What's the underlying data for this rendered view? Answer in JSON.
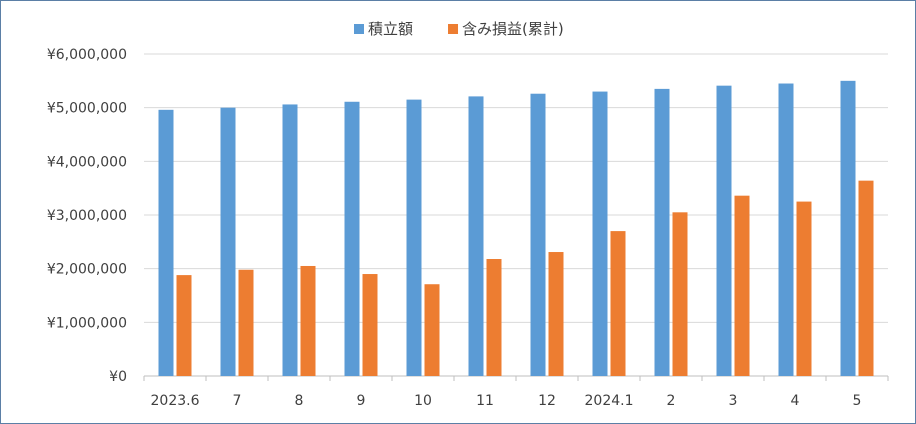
{
  "chart_data": {
    "type": "bar",
    "categories": [
      "2023.6",
      "7",
      "8",
      "9",
      "10",
      "11",
      "12",
      "2024.1",
      "2",
      "3",
      "4",
      "5"
    ],
    "series": [
      {
        "name": "積立額",
        "color": "#5b9bd5",
        "values": [
          4960000,
          5000000,
          5060000,
          5110000,
          5150000,
          5210000,
          5260000,
          5300000,
          5350000,
          5410000,
          5450000,
          5500000
        ]
      },
      {
        "name": "含み損益(累計)",
        "color": "#ed7d31",
        "values": [
          1880000,
          1980000,
          2050000,
          1900000,
          1710000,
          2180000,
          2310000,
          2700000,
          3050000,
          3360000,
          3250000,
          3640000
        ]
      }
    ],
    "ylim": [
      0,
      6000000
    ],
    "y_ticks": [
      0,
      1000000,
      2000000,
      3000000,
      4000000,
      5000000,
      6000000
    ],
    "y_tick_labels": [
      "¥0",
      "¥1,000,000",
      "¥2,000,000",
      "¥3,000,000",
      "¥4,000,000",
      "¥5,000,000",
      "¥6,000,000"
    ],
    "grid": true,
    "legend_position": "top",
    "colors": {
      "gridline": "#d9d9d9",
      "axis": "#bfbfbf",
      "text": "#404040",
      "border": "#5b7fa6"
    }
  }
}
